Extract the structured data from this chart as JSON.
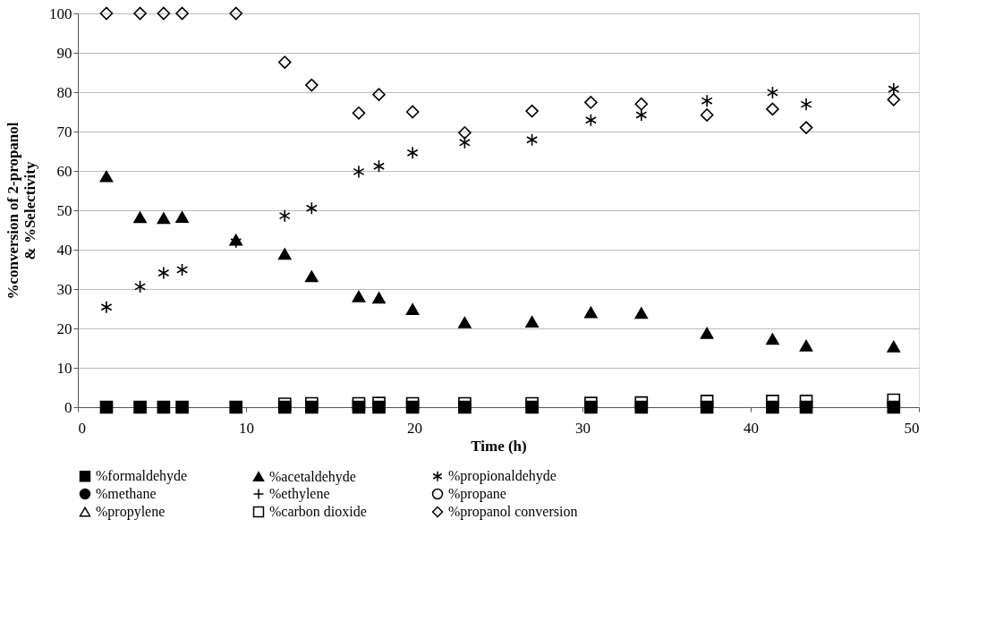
{
  "chart_data": {
    "type": "scatter",
    "xlabel": "Time (h)",
    "ylabel": "%conversion of 2-propanol\n& %Selectivity",
    "x": [
      1.7,
      3.7,
      5.1,
      6.2,
      9.4,
      12.3,
      13.9,
      16.7,
      17.9,
      19.9,
      23.0,
      27.0,
      30.5,
      33.5,
      37.4,
      41.3,
      43.3,
      48.5
    ],
    "xlim": [
      0,
      50
    ],
    "xticks": [
      0,
      10,
      20,
      30,
      40,
      50
    ],
    "ylim": [
      0,
      100
    ],
    "yticks": [
      0,
      10,
      20,
      30,
      40,
      50,
      60,
      70,
      80,
      90,
      100
    ],
    "grid": "y",
    "legend": "bottom",
    "series": [
      {
        "name": "%formaldehyde",
        "color": "#000000",
        "marker": "square",
        "values": [
          0,
          0,
          0,
          0,
          0,
          0,
          0,
          0,
          0,
          0,
          0,
          0,
          0,
          0,
          0,
          0,
          0,
          0
        ]
      },
      {
        "name": "%acetaldehyde",
        "color": "#000000",
        "marker": "triangle",
        "values": [
          58.6,
          48.2,
          48.0,
          48.3,
          42.5,
          38.9,
          33.2,
          28.1,
          27.8,
          24.9,
          21.5,
          21.7,
          24.1,
          23.9,
          18.8,
          17.3,
          15.6,
          15.4
        ]
      },
      {
        "name": "%propionaldehyde",
        "color": "#000000",
        "marker": "cross",
        "values": [
          25.4,
          30.6,
          34.1,
          34.9,
          42.0,
          48.6,
          50.5,
          59.8,
          61.2,
          64.6,
          67.2,
          67.9,
          72.9,
          74.2,
          77.8,
          79.9,
          76.9,
          80.8
        ]
      },
      {
        "name": "%methane",
        "color": "#000000",
        "marker": "circle",
        "values": [
          null,
          null,
          null,
          null,
          null,
          null,
          null,
          null,
          null,
          null,
          null,
          null,
          null,
          null,
          null,
          null,
          null,
          null
        ]
      },
      {
        "name": "%ethylene",
        "color": "#000000",
        "marker": "plus",
        "values": [
          null,
          null,
          null,
          null,
          null,
          null,
          null,
          null,
          null,
          null,
          null,
          null,
          null,
          null,
          null,
          null,
          null,
          null
        ]
      },
      {
        "name": "%propane",
        "color": "#000000",
        "marker": "circle-open",
        "values": [
          null,
          null,
          null,
          null,
          null,
          null,
          null,
          null,
          null,
          null,
          null,
          null,
          null,
          null,
          null,
          null,
          null,
          null
        ]
      },
      {
        "name": "%propylene",
        "color": "#000000",
        "marker": "triangle-open",
        "values": [
          null,
          null,
          null,
          null,
          null,
          null,
          null,
          null,
          null,
          null,
          null,
          null,
          null,
          null,
          null,
          null,
          null,
          null
        ]
      },
      {
        "name": "%carbon dioxide",
        "color": "#000000",
        "marker": "square-open",
        "values": [
          null,
          null,
          null,
          null,
          null,
          0.8,
          0.9,
          0.9,
          1.0,
          0.9,
          0.9,
          0.9,
          1.0,
          1.1,
          1.5,
          1.5,
          1.5,
          1.8
        ]
      },
      {
        "name": "%propanol conversion",
        "color": "#000000",
        "marker": "diamond-open",
        "values": [
          100,
          100,
          100,
          100,
          100,
          87.6,
          81.8,
          74.7,
          79.4,
          75.0,
          69.7,
          75.2,
          77.4,
          77.0,
          74.2,
          75.7,
          71.0,
          78.1
        ]
      }
    ]
  }
}
